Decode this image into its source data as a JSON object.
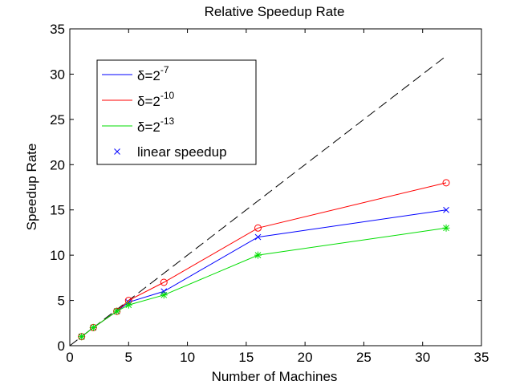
{
  "chart_data": {
    "type": "line",
    "title": "Relative Speedup Rate",
    "xlabel": "Number of Machines",
    "ylabel": "Speedup Rate",
    "xlim": [
      0,
      35
    ],
    "ylim": [
      0,
      35
    ],
    "xticks": [
      0,
      5,
      10,
      15,
      20,
      25,
      30,
      35
    ],
    "yticks": [
      0,
      5,
      10,
      15,
      20,
      25,
      30,
      35
    ],
    "x": [
      1,
      2,
      4,
      5,
      8,
      16,
      32
    ],
    "series": [
      {
        "name": "δ=2",
        "exponent": "-7",
        "color": "#0000ff",
        "marker": "x",
        "values": [
          1,
          2,
          3.8,
          4.8,
          6,
          12,
          15
        ]
      },
      {
        "name": "δ=2",
        "exponent": "-10",
        "color": "#ff0000",
        "marker": "o",
        "values": [
          1,
          2,
          3.8,
          5,
          7,
          13,
          18
        ]
      },
      {
        "name": "δ=2",
        "exponent": "-13",
        "color": "#00dd00",
        "marker": "*",
        "values": [
          1,
          2,
          3.8,
          4.5,
          5.6,
          10,
          13
        ]
      }
    ],
    "reference": {
      "name": "linear speedup",
      "color": "#000000",
      "style": "dashed",
      "x": [
        0,
        32
      ],
      "values": [
        0,
        32
      ]
    },
    "legend": {
      "placement": "top-left",
      "extra_entry": {
        "label": "linear speedup",
        "marker": "x",
        "color": "#0000ff"
      }
    }
  }
}
